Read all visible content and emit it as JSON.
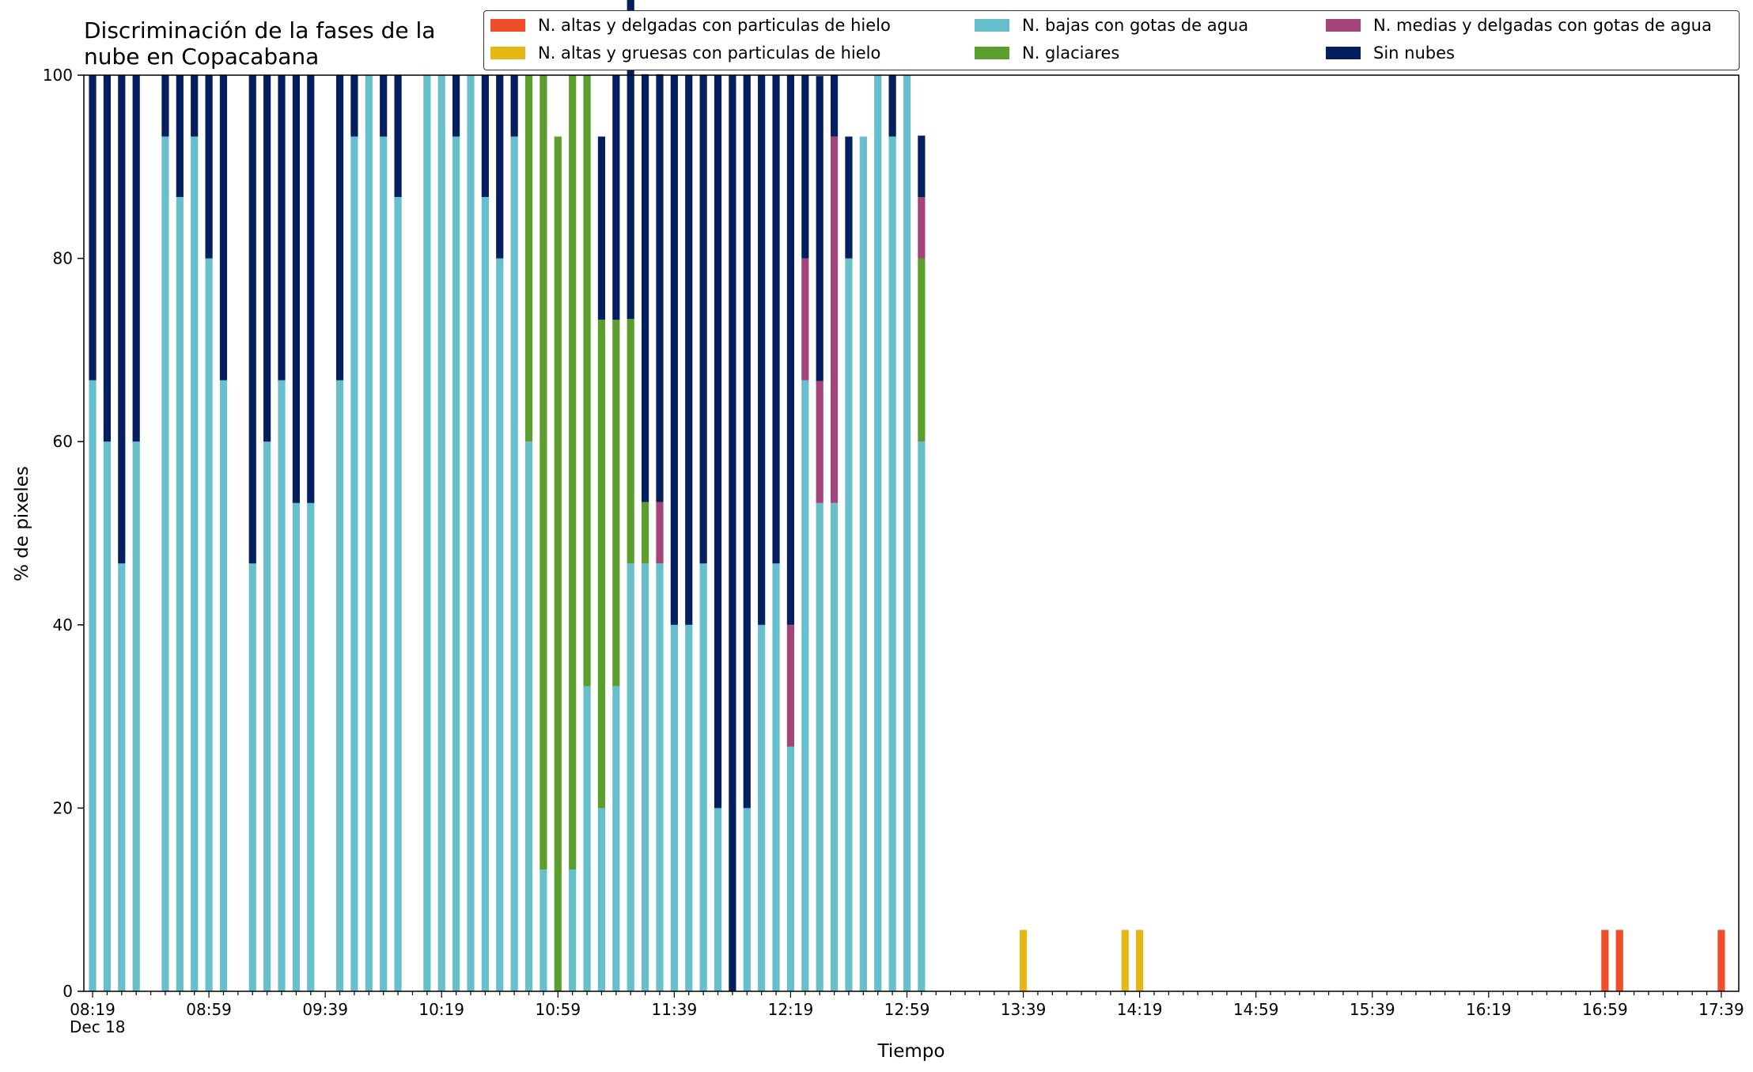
{
  "chart_data": {
    "type": "bar",
    "stacked": true,
    "title": "Discriminación de la fases de la\nnube en Copacabana",
    "xlabel": "Tiempo",
    "ylabel": "% de pixeles",
    "ylim": [
      0,
      100
    ],
    "yticks": [
      0,
      20,
      40,
      60,
      80,
      100
    ],
    "date_label": "Dec 18",
    "xtick_labels": [
      "08:19",
      "08:59",
      "09:39",
      "10:19",
      "10:59",
      "11:39",
      "12:19",
      "12:59",
      "13:39",
      "14:19",
      "14:59",
      "15:39",
      "16:19",
      "16:59",
      "17:39"
    ],
    "categories": [
      "08:19",
      "08:24",
      "08:29",
      "08:34",
      "08:39",
      "08:44",
      "08:49",
      "08:54",
      "08:59",
      "09:04",
      "09:09",
      "09:14",
      "09:19",
      "09:24",
      "09:29",
      "09:34",
      "09:39",
      "09:44",
      "09:49",
      "09:54",
      "09:59",
      "10:04",
      "10:09",
      "10:14",
      "10:19",
      "10:24",
      "10:29",
      "10:34",
      "10:39",
      "10:44",
      "10:49",
      "10:54",
      "10:59",
      "11:04",
      "11:09",
      "11:14",
      "11:19",
      "11:24",
      "11:29",
      "11:34",
      "11:39",
      "11:44",
      "11:49",
      "11:54",
      "11:59",
      "12:04",
      "12:09",
      "12:14",
      "12:19",
      "12:24",
      "12:29",
      "12:34",
      "12:39",
      "12:44",
      "12:49",
      "12:54",
      "12:59",
      "13:04",
      "13:09",
      "13:14",
      "13:19",
      "13:24",
      "13:29",
      "13:34",
      "13:39",
      "13:44",
      "13:49",
      "13:54",
      "13:59",
      "14:04",
      "14:09",
      "14:14",
      "14:19",
      "14:24",
      "14:29",
      "14:34",
      "14:39",
      "14:44",
      "14:49",
      "14:54",
      "14:59",
      "15:04",
      "15:09",
      "15:14",
      "15:19",
      "15:24",
      "15:29",
      "15:34",
      "15:39",
      "15:44",
      "15:49",
      "15:54",
      "15:59",
      "16:04",
      "16:09",
      "16:14",
      "16:19",
      "16:24",
      "16:29",
      "16:34",
      "16:39",
      "16:44",
      "16:49",
      "16:54",
      "16:59",
      "17:04",
      "17:09",
      "17:14",
      "17:19",
      "17:24",
      "17:29",
      "17:34",
      "17:39"
    ],
    "series": [
      {
        "name": "N. altas y delgadas con particulas de hielo",
        "color": "#f04e2b",
        "points": [
          {
            "x": "16:59",
            "y": 6.7
          },
          {
            "x": "17:04",
            "y": 6.7
          },
          {
            "x": "17:39",
            "y": 6.7
          }
        ]
      },
      {
        "name": "N. altas y gruesas con particulas de hielo",
        "color": "#e4b616",
        "points": [
          {
            "x": "13:39",
            "y": 6.7
          },
          {
            "x": "14:14",
            "y": 6.7
          },
          {
            "x": "14:19",
            "y": 6.7
          }
        ]
      },
      {
        "name": "N. bajas con gotas de agua",
        "color": "#66bfcb",
        "points": [
          {
            "x": "08:19",
            "y": 66.7
          },
          {
            "x": "08:24",
            "y": 60
          },
          {
            "x": "08:29",
            "y": 46.7
          },
          {
            "x": "08:34",
            "y": 60
          },
          {
            "x": "08:44",
            "y": 93.3
          },
          {
            "x": "08:49",
            "y": 86.7
          },
          {
            "x": "08:54",
            "y": 93.3
          },
          {
            "x": "08:59",
            "y": 80
          },
          {
            "x": "09:04",
            "y": 66.7
          },
          {
            "x": "09:14",
            "y": 46.7
          },
          {
            "x": "09:19",
            "y": 60
          },
          {
            "x": "09:24",
            "y": 66.7
          },
          {
            "x": "09:29",
            "y": 53.3
          },
          {
            "x": "09:34",
            "y": 53.3
          },
          {
            "x": "09:44",
            "y": 66.7
          },
          {
            "x": "09:49",
            "y": 93.3
          },
          {
            "x": "09:54",
            "y": 100
          },
          {
            "x": "09:59",
            "y": 93.3
          },
          {
            "x": "10:04",
            "y": 86.7
          },
          {
            "x": "10:14",
            "y": 100
          },
          {
            "x": "10:19",
            "y": 100
          },
          {
            "x": "10:24",
            "y": 93.3
          },
          {
            "x": "10:29",
            "y": 100
          },
          {
            "x": "10:34",
            "y": 86.7
          },
          {
            "x": "10:39",
            "y": 80
          },
          {
            "x": "10:44",
            "y": 93.3
          },
          {
            "x": "10:49",
            "y": 60
          },
          {
            "x": "10:54",
            "y": 13.3
          },
          {
            "x": "11:04",
            "y": 13.3
          },
          {
            "x": "11:09",
            "y": 33.3
          },
          {
            "x": "11:14",
            "y": 20
          },
          {
            "x": "11:19",
            "y": 33.3
          },
          {
            "x": "11:24",
            "y": 46.7
          },
          {
            "x": "11:29",
            "y": 46.7
          },
          {
            "x": "11:34",
            "y": 46.7
          },
          {
            "x": "11:39",
            "y": 40
          },
          {
            "x": "11:44",
            "y": 40
          },
          {
            "x": "11:49",
            "y": 46.7
          },
          {
            "x": "11:54",
            "y": 20
          },
          {
            "x": "12:04",
            "y": 20
          },
          {
            "x": "12:09",
            "y": 40
          },
          {
            "x": "12:14",
            "y": 46.7
          },
          {
            "x": "12:19",
            "y": 26.7
          },
          {
            "x": "12:24",
            "y": 66.7
          },
          {
            "x": "12:29",
            "y": 53.3
          },
          {
            "x": "12:34",
            "y": 53.3
          },
          {
            "x": "12:39",
            "y": 80
          },
          {
            "x": "12:44",
            "y": 93.3
          },
          {
            "x": "12:49",
            "y": 100
          },
          {
            "x": "12:54",
            "y": 93.3
          },
          {
            "x": "12:59",
            "y": 100
          },
          {
            "x": "13:04",
            "y": 60
          }
        ]
      },
      {
        "name": "N. glaciares",
        "color": "#5b9e2d",
        "points": [
          {
            "x": "10:49",
            "y": 40
          },
          {
            "x": "10:54",
            "y": 86.7
          },
          {
            "x": "10:59",
            "y": 93.3
          },
          {
            "x": "11:04",
            "y": 86.7
          },
          {
            "x": "11:09",
            "y": 66.7
          },
          {
            "x": "11:14",
            "y": 53.3
          },
          {
            "x": "11:19",
            "y": 40
          },
          {
            "x": "11:24",
            "y": 26.7
          },
          {
            "x": "11:29",
            "y": 6.7
          },
          {
            "x": "13:04",
            "y": 20
          }
        ]
      },
      {
        "name": "N. medias y delgadas con gotas de agua",
        "color": "#a3457a",
        "points": [
          {
            "x": "11:34",
            "y": 6.7
          },
          {
            "x": "12:19",
            "y": 13.3
          },
          {
            "x": "12:24",
            "y": 13.3
          },
          {
            "x": "12:29",
            "y": 13.3
          },
          {
            "x": "12:34",
            "y": 40
          },
          {
            "x": "13:04",
            "y": 6.7
          }
        ]
      },
      {
        "name": "Sin nubes",
        "color": "#031f5f",
        "points": [
          {
            "x": "08:19",
            "y": 33.3
          },
          {
            "x": "08:24",
            "y": 40
          },
          {
            "x": "08:29",
            "y": 53.3
          },
          {
            "x": "08:34",
            "y": 40
          },
          {
            "x": "08:44",
            "y": 6.7
          },
          {
            "x": "08:49",
            "y": 13.3
          },
          {
            "x": "08:54",
            "y": 6.7
          },
          {
            "x": "08:59",
            "y": 20
          },
          {
            "x": "09:04",
            "y": 33.3
          },
          {
            "x": "09:14",
            "y": 53.3
          },
          {
            "x": "09:19",
            "y": 40
          },
          {
            "x": "09:24",
            "y": 33.3
          },
          {
            "x": "09:29",
            "y": 46.7
          },
          {
            "x": "09:34",
            "y": 46.7
          },
          {
            "x": "09:44",
            "y": 33.3
          },
          {
            "x": "09:49",
            "y": 6.7
          },
          {
            "x": "09:59",
            "y": 6.7
          },
          {
            "x": "10:04",
            "y": 13.3
          },
          {
            "x": "10:24",
            "y": 6.7
          },
          {
            "x": "10:34",
            "y": 13.3
          },
          {
            "x": "10:39",
            "y": 20
          },
          {
            "x": "10:44",
            "y": 6.7
          },
          {
            "x": "11:14",
            "y": 20
          },
          {
            "x": "11:19",
            "y": 26.7
          },
          {
            "x": "11:24",
            "y": 46.7
          },
          {
            "x": "11:29",
            "y": 46.7
          },
          {
            "x": "11:34",
            "y": 46.7
          },
          {
            "x": "11:39",
            "y": 60
          },
          {
            "x": "11:44",
            "y": 60
          },
          {
            "x": "11:49",
            "y": 53.3
          },
          {
            "x": "11:54",
            "y": 80
          },
          {
            "x": "11:59",
            "y": 100
          },
          {
            "x": "12:04",
            "y": 80
          },
          {
            "x": "12:09",
            "y": 60
          },
          {
            "x": "12:14",
            "y": 53.3
          },
          {
            "x": "12:19",
            "y": 60
          },
          {
            "x": "12:24",
            "y": 20
          },
          {
            "x": "12:29",
            "y": 33.3
          },
          {
            "x": "12:34",
            "y": 6.7
          },
          {
            "x": "12:39",
            "y": 13.3
          },
          {
            "x": "12:49",
            "y": 0
          },
          {
            "x": "12:54",
            "y": 6.7
          },
          {
            "x": "13:04",
            "y": 6.7
          }
        ]
      }
    ],
    "legend": {
      "placement": "top-right",
      "columns": [
        [
          "N. altas y delgadas con particulas de hielo",
          "N. altas y gruesas con particulas de hielo"
        ],
        [
          "N. bajas con gotas de agua",
          "N. glaciares"
        ],
        [
          "N. medias y delgadas con gotas de agua",
          "Sin nubes"
        ]
      ]
    },
    "grid": false
  }
}
